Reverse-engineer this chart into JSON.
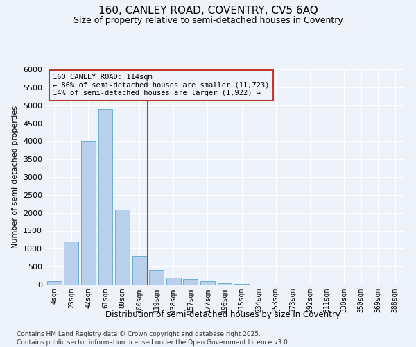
{
  "title_line1": "160, CANLEY ROAD, COVENTRY, CV5 6AQ",
  "title_line2": "Size of property relative to semi-detached houses in Coventry",
  "xlabel": "Distribution of semi-detached houses by size in Coventry",
  "ylabel": "Number of semi-detached properties",
  "categories": [
    "4sqm",
    "23sqm",
    "42sqm",
    "61sqm",
    "80sqm",
    "100sqm",
    "119sqm",
    "138sqm",
    "157sqm",
    "177sqm",
    "196sqm",
    "215sqm",
    "234sqm",
    "253sqm",
    "273sqm",
    "292sqm",
    "311sqm",
    "330sqm",
    "350sqm",
    "369sqm",
    "388sqm"
  ],
  "values": [
    100,
    1200,
    4000,
    4900,
    2100,
    800,
    400,
    200,
    150,
    100,
    30,
    10,
    2,
    1,
    0,
    0,
    0,
    0,
    0,
    0,
    0
  ],
  "bar_color": "#b8d0eb",
  "bar_edgecolor": "#6aaed6",
  "vline_x_index": 5.5,
  "vline_color": "#c0392b",
  "annotation_text": "160 CANLEY ROAD: 114sqm\n← 86% of semi-detached houses are smaller (11,723)\n14% of semi-detached houses are larger (1,922) →",
  "annotation_box_color": "#c0392b",
  "ylim": [
    0,
    6000
  ],
  "yticks": [
    0,
    500,
    1000,
    1500,
    2000,
    2500,
    3000,
    3500,
    4000,
    4500,
    5000,
    5500,
    6000
  ],
  "background_color": "#edf2fb",
  "grid_color": "#ffffff",
  "footer_line1": "Contains HM Land Registry data © Crown copyright and database right 2025.",
  "footer_line2": "Contains public sector information licensed under the Open Government Licence v3.0."
}
